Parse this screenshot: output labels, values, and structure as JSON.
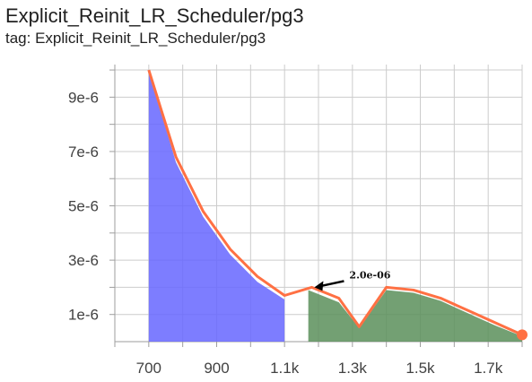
{
  "header": {
    "title": "Explicit_Reinit_LR_Scheduler/pg3",
    "tag": "tag: Explicit_Reinit_LR_Scheduler/pg3"
  },
  "colors": {
    "line": "#ff7043",
    "phase1_fill": "#6666ff",
    "phase2_fill": "#5a8f5a",
    "grid": "#cccccc"
  },
  "chart_data": {
    "type": "area",
    "title": "Explicit_Reinit_LR_Scheduler/pg3",
    "xlabel": "",
    "ylabel": "",
    "xlim": [
      600,
      1800
    ],
    "ylim": [
      0,
      1.02e-05
    ],
    "x_ticks": [
      700,
      900,
      1100,
      1300,
      1500,
      1700
    ],
    "x_tick_labels": [
      "700",
      "900",
      "1.1k",
      "1.3k",
      "1.5k",
      "1.7k"
    ],
    "y_ticks": [
      1e-06,
      3e-06,
      5e-06,
      7e-06,
      9e-06
    ],
    "y_tick_labels": [
      "1e-6",
      "3e-6",
      "5e-6",
      "7e-6",
      "9e-6"
    ],
    "grid": true,
    "line_points": [
      {
        "x": 700,
        "y": 1e-05
      },
      {
        "x": 780,
        "y": 6.8e-06
      },
      {
        "x": 860,
        "y": 4.8e-06
      },
      {
        "x": 940,
        "y": 3.4e-06
      },
      {
        "x": 1020,
        "y": 2.4e-06
      },
      {
        "x": 1100,
        "y": 1.7e-06
      },
      {
        "x": 1180,
        "y": 2e-06
      },
      {
        "x": 1260,
        "y": 1.6e-06
      },
      {
        "x": 1320,
        "y": 5.5e-07
      },
      {
        "x": 1400,
        "y": 2e-06
      },
      {
        "x": 1480,
        "y": 1.9e-06
      },
      {
        "x": 1560,
        "y": 1.6e-06
      },
      {
        "x": 1640,
        "y": 1.15e-06
      },
      {
        "x": 1720,
        "y": 7e-07
      },
      {
        "x": 1800,
        "y": 2.5e-07
      }
    ],
    "fill_regions": [
      {
        "color": "#6666ff",
        "points": [
          {
            "x": 700,
            "y": 1e-05
          },
          {
            "x": 780,
            "y": 6.6e-06
          },
          {
            "x": 860,
            "y": 4.6e-06
          },
          {
            "x": 940,
            "y": 3.2e-06
          },
          {
            "x": 1020,
            "y": 2.2e-06
          },
          {
            "x": 1100,
            "y": 1.55e-06
          }
        ]
      },
      {
        "color": "#5a8f5a",
        "points": [
          {
            "x": 1170,
            "y": 1.9e-06
          },
          {
            "x": 1260,
            "y": 1.45e-06
          },
          {
            "x": 1320,
            "y": 5e-07
          },
          {
            "x": 1400,
            "y": 1.9e-06
          },
          {
            "x": 1480,
            "y": 1.8e-06
          },
          {
            "x": 1560,
            "y": 1.5e-06
          },
          {
            "x": 1640,
            "y": 1.05e-06
          },
          {
            "x": 1720,
            "y": 6e-07
          },
          {
            "x": 1800,
            "y": 2e-07
          }
        ]
      }
    ],
    "end_marker": {
      "x": 1800,
      "y": 2.5e-07
    },
    "annotation": {
      "text": "2.0e-06",
      "x": 1180,
      "y": 2e-06
    }
  }
}
